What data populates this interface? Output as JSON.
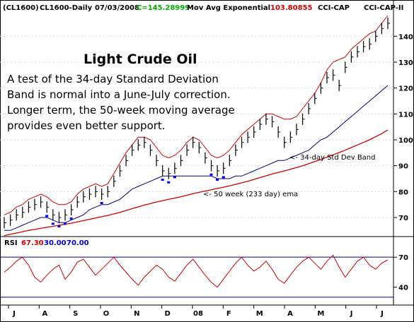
{
  "header": {
    "symbol": "(CL1600)",
    "name": "CL1600-Daily",
    "date": "07/03/2008",
    "close": "C=145.28999",
    "indicator": "Mov Avg Exponential",
    "indicator_value": "103.80855",
    "cci1": "CCI-CAP",
    "cci2": "CCI-CAP-II"
  },
  "annotations": {
    "title": "Light Crude Oil",
    "body_lines": [
      "A test of the 34-day Standard Deviation",
      "Band is normal into a June-July correction.",
      "Longer term, the 50-week moving average",
      "provides even better support."
    ],
    "band_label": "<- 34-day Std Dev Band",
    "ema_label": "<- 50 week (233 day) ema"
  },
  "rsi_header": {
    "label": "RSI",
    "value": "67.30",
    "low": "30.00",
    "high": "70.00"
  },
  "colors": {
    "frame": "#000000",
    "background": "#ffffff",
    "price_bars": "#000000",
    "upper_band": "#cc0000",
    "lower_band": "#00007a",
    "ema": "#cc0000",
    "rsi_line": "#cc0000",
    "rsi_70": "#000080",
    "rsi_30": "#000080",
    "green_text": "#00aa00",
    "red_text": "#cc0000",
    "blue_text": "#0000cc",
    "marker_red": "#ff0000",
    "marker_blue": "#0000ff"
  },
  "chart_data": {
    "type": "line",
    "price_axis": {
      "ticks": [
        70,
        80,
        90,
        100,
        110,
        120,
        130,
        140
      ],
      "range": [
        64,
        148
      ]
    },
    "rsi_axis": {
      "ticks": [
        40,
        70
      ],
      "range": [
        25,
        80
      ]
    },
    "months": [
      "J",
      "A",
      "S",
      "O",
      "N",
      "D",
      "08",
      "F",
      "M",
      "A",
      "M",
      "J",
      "J"
    ],
    "price": [
      68,
      69,
      71,
      72,
      74,
      75,
      76,
      74,
      71,
      70,
      71,
      73,
      76,
      78,
      79,
      80,
      79,
      80,
      84,
      88,
      92,
      96,
      98,
      99,
      96,
      92,
      88,
      87,
      89,
      92,
      96,
      99,
      97,
      93,
      90,
      88,
      89,
      92,
      96,
      99,
      101,
      103,
      106,
      108,
      107,
      103,
      99,
      101,
      104,
      108,
      112,
      116,
      120,
      124,
      125,
      121,
      128,
      132,
      134,
      136,
      137,
      140,
      143,
      145
    ],
    "upper_band": [
      71,
      72,
      74,
      75,
      77,
      78,
      79,
      78,
      76,
      75,
      75,
      76,
      79,
      81,
      82,
      83,
      82,
      83,
      87,
      91,
      95,
      98,
      101,
      101,
      100,
      97,
      94,
      93,
      94,
      96,
      99,
      101,
      100,
      97,
      94,
      93,
      94,
      96,
      99,
      102,
      104,
      106,
      108,
      110,
      110,
      109,
      108,
      108,
      109,
      112,
      115,
      118,
      122,
      127,
      130,
      131,
      132,
      135,
      137,
      139,
      141,
      142,
      145,
      148
    ],
    "lower_band": [
      65,
      65,
      66,
      67,
      68,
      69,
      70,
      70,
      69,
      68,
      68,
      69,
      70,
      71,
      73,
      74,
      75,
      75,
      76,
      77,
      79,
      81,
      82,
      83,
      84,
      85,
      86,
      86,
      86,
      86,
      86,
      86,
      86,
      86,
      86,
      85,
      85,
      85,
      86,
      86,
      87,
      88,
      89,
      90,
      91,
      92,
      92,
      93,
      94,
      95,
      96,
      98,
      100,
      101,
      103,
      105,
      107,
      109,
      111,
      113,
      115,
      117,
      119,
      121
    ],
    "ema": [
      63,
      63.5,
      64,
      64.5,
      65,
      65.4,
      65.8,
      66.2,
      66.6,
      67,
      67.4,
      67.8,
      68.3,
      68.8,
      69.3,
      69.8,
      70.3,
      70.8,
      71.4,
      72,
      72.7,
      73.4,
      74.1,
      74.8,
      75.4,
      76,
      76.5,
      77,
      77.5,
      78,
      78.6,
      79.2,
      79.7,
      80.2,
      80.7,
      81.2,
      81.7,
      82.2,
      82.8,
      83.4,
      84,
      84.7,
      85.4,
      86.1,
      86.8,
      87.4,
      88,
      88.6,
      89.3,
      90,
      90.8,
      91.6,
      92.4,
      93.3,
      94.2,
      95.1,
      96,
      97,
      98,
      99,
      100,
      101.2,
      102.4,
      103.8
    ],
    "rsi": [
      55,
      60,
      66,
      70,
      62,
      50,
      45,
      52,
      58,
      62,
      48,
      55,
      65,
      68,
      60,
      52,
      58,
      64,
      70,
      62,
      55,
      48,
      42,
      50,
      56,
      62,
      58,
      50,
      46,
      54,
      62,
      68,
      60,
      52,
      45,
      40,
      48,
      56,
      64,
      70,
      62,
      56,
      60,
      66,
      58,
      48,
      44,
      52,
      60,
      66,
      70,
      64,
      58,
      66,
      72,
      60,
      50,
      58,
      66,
      70,
      62,
      58,
      64,
      67.3
    ],
    "legend": [
      "RSI",
      "67.30",
      "30.00",
      "70.00"
    ]
  }
}
